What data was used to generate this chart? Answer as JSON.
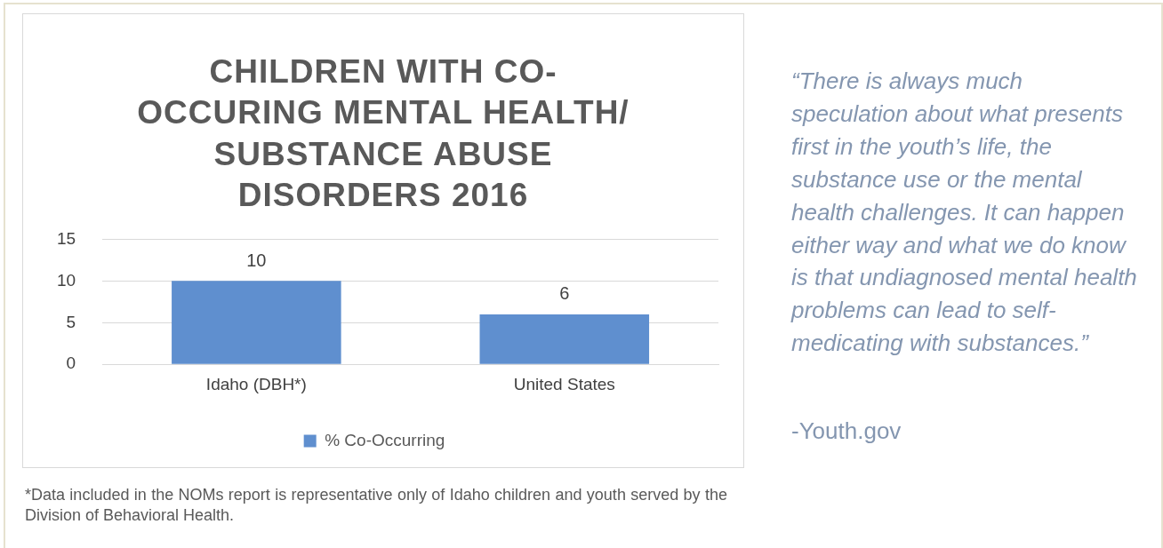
{
  "chart_data": {
    "type": "bar",
    "title": "CHILDREN WITH CO-OCCURING MENTAL HEALTH/ SUBSTANCE ABUSE DISORDERS 2016",
    "categories": [
      "Idaho (DBH*)",
      "United States"
    ],
    "series": [
      {
        "name": "% Co-Occurring",
        "color": "#5f8fcf",
        "values": [
          10,
          6
        ]
      }
    ],
    "ylim": [
      0,
      15
    ],
    "yticks": [
      0,
      5,
      10,
      15
    ],
    "grid": "y",
    "legend": "bottom",
    "data_labels": true,
    "annotations": [
      "“There is always much speculation about what presents first in the youth’s life, the substance use or the mental health challenges.  It can happen either way and what we do know is that undiagnosed mental health problems can lead to self-medicating with substances.”",
      "-Youth.gov",
      "*Data included in the NOMs report is representative only of Idaho children and youth served by the Division of Behavioral Health."
    ]
  }
}
